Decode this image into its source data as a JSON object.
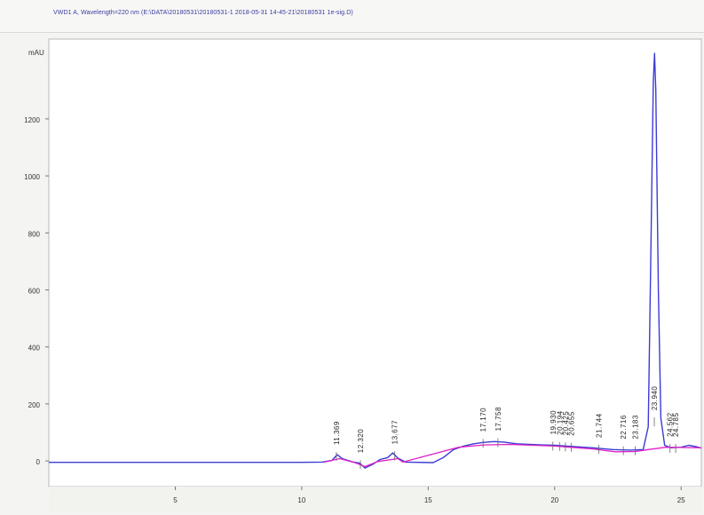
{
  "header": {
    "title": "VWD1 A, Wavelength=220 nm (E:\\DATA\\20180531\\20180531-1 2018-05-31 14-45-21\\20180531 1e-sig.D)"
  },
  "colors": {
    "background": "#f4f4f2",
    "plot_area": "#ffffff",
    "signal": "#3b3bd4",
    "baseline": "#e020c8",
    "axis_text": "#333333",
    "tick_text": "#333333"
  },
  "chart_data": {
    "type": "line",
    "title": "VWD1 A, Wavelength=220 nm (E:\\DATA\\20180531\\20180531-1 2018-05-31 14-45-21\\20180531 1e-sig.D)",
    "ylabel": "mAU",
    "xlabel": "",
    "xlim": [
      0,
      25.8
    ],
    "ylim": [
      -90,
      1480
    ],
    "x_ticks": [
      5,
      10,
      15,
      20,
      25
    ],
    "y_ticks": [
      0,
      200,
      400,
      600,
      800,
      1000,
      1200
    ],
    "series": [
      {
        "role": "signal",
        "points": [
          [
            0,
            -5
          ],
          [
            5,
            -5
          ],
          [
            10,
            -5
          ],
          [
            10.8,
            -4
          ],
          [
            11.2,
            2
          ],
          [
            11.4,
            22
          ],
          [
            11.6,
            8
          ],
          [
            12.0,
            -3
          ],
          [
            12.3,
            -8
          ],
          [
            12.5,
            -25
          ],
          [
            12.8,
            -12
          ],
          [
            13.1,
            5
          ],
          [
            13.4,
            12
          ],
          [
            13.6,
            28
          ],
          [
            13.8,
            10
          ],
          [
            14.1,
            -4
          ],
          [
            15.2,
            -6
          ],
          [
            15.6,
            12
          ],
          [
            16.0,
            40
          ],
          [
            16.4,
            52
          ],
          [
            16.8,
            60
          ],
          [
            17.2,
            65
          ],
          [
            17.6,
            68
          ],
          [
            18.0,
            66
          ],
          [
            18.5,
            60
          ],
          [
            19.5,
            56
          ],
          [
            20.0,
            55
          ],
          [
            20.5,
            52
          ],
          [
            21.5,
            46
          ],
          [
            22.3,
            40
          ],
          [
            23.0,
            38
          ],
          [
            23.5,
            40
          ],
          [
            23.7,
            120
          ],
          [
            23.8,
            700
          ],
          [
            23.9,
            1330
          ],
          [
            23.95,
            1430
          ],
          [
            24.0,
            1300
          ],
          [
            24.1,
            600
          ],
          [
            24.2,
            150
          ],
          [
            24.35,
            55
          ],
          [
            24.6,
            46
          ],
          [
            25.0,
            48
          ],
          [
            25.3,
            55
          ],
          [
            25.6,
            50
          ],
          [
            25.8,
            45
          ]
        ]
      },
      {
        "role": "baseline",
        "points": [
          [
            10.9,
            -4
          ],
          [
            11.5,
            8
          ],
          [
            12.1,
            -6
          ],
          [
            12.5,
            -20
          ],
          [
            13.0,
            -2
          ],
          [
            13.8,
            8
          ],
          [
            14.0,
            -4
          ],
          [
            16.2,
            48
          ],
          [
            17.2,
            56
          ],
          [
            18.2,
            58
          ],
          [
            20.0,
            52
          ],
          [
            21.5,
            42
          ],
          [
            22.4,
            32
          ],
          [
            23.2,
            33
          ],
          [
            23.7,
            40
          ],
          [
            24.4,
            48
          ],
          [
            25.8,
            46
          ]
        ]
      }
    ],
    "peak_labels": [
      {
        "x": 11.369,
        "label": "11.369"
      },
      {
        "x": 12.32,
        "label": "12.320"
      },
      {
        "x": 13.677,
        "label": "13.677"
      },
      {
        "x": 17.17,
        "label": "17.170"
      },
      {
        "x": 17.758,
        "label": "17.758"
      },
      {
        "x": 19.93,
        "label": "19.930"
      },
      {
        "x": 20.194,
        "label": "20.194"
      },
      {
        "x": 20.425,
        "label": "20.425"
      },
      {
        "x": 20.655,
        "label": "20.655"
      },
      {
        "x": 21.744,
        "label": "21.744"
      },
      {
        "x": 22.716,
        "label": "22.716"
      },
      {
        "x": 23.183,
        "label": "23.183"
      },
      {
        "x": 23.94,
        "label": "23.940"
      },
      {
        "x": 24.562,
        "label": "24.562"
      },
      {
        "x": 24.785,
        "label": "24.785"
      }
    ],
    "grid": false
  }
}
